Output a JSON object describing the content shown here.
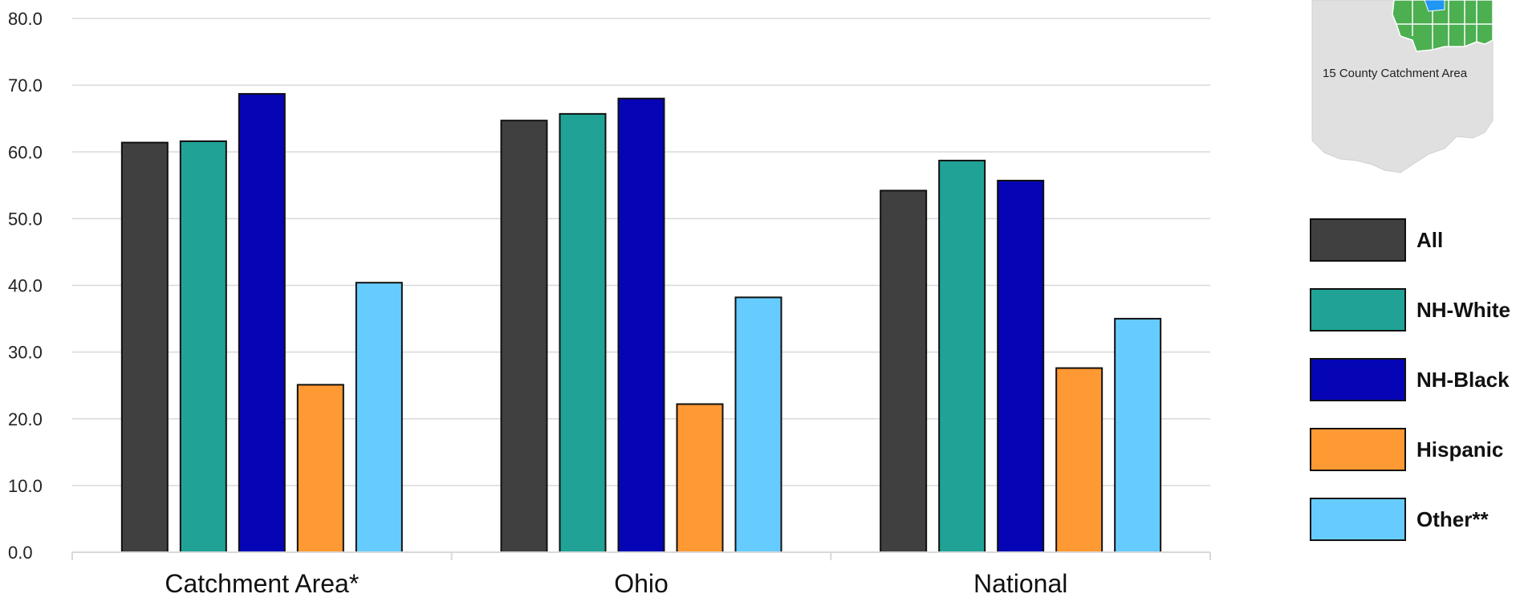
{
  "chart_data": {
    "type": "bar",
    "categories": [
      "Catchment Area*",
      "Ohio",
      "National"
    ],
    "series": [
      {
        "name": "All",
        "values": [
          61.4,
          64.7,
          54.2
        ],
        "color": "#404040"
      },
      {
        "name": "NH-White",
        "values": [
          61.6,
          65.7,
          58.7
        ],
        "color": "#20A396"
      },
      {
        "name": "NH-Black",
        "values": [
          68.7,
          68.0,
          55.7
        ],
        "color": "#0505B5"
      },
      {
        "name": "Hispanic",
        "values": [
          25.1,
          22.2,
          27.6
        ],
        "color": "#FF9933"
      },
      {
        "name": "Other**",
        "values": [
          40.4,
          38.2,
          35.0
        ],
        "color": "#66CCFF"
      }
    ],
    "yticks": [
      "0.0",
      "10.0",
      "20.0",
      "30.0",
      "40.0",
      "50.0",
      "60.0",
      "70.0",
      "80.0"
    ],
    "ylim": [
      0,
      80
    ],
    "grid": true,
    "legend_position": "right"
  },
  "map_inset": {
    "caption": "15 County Catchment Area",
    "map_color": "#E0E0E0",
    "county_color": "#4CAF50",
    "highlight_color": "#2196F3"
  }
}
